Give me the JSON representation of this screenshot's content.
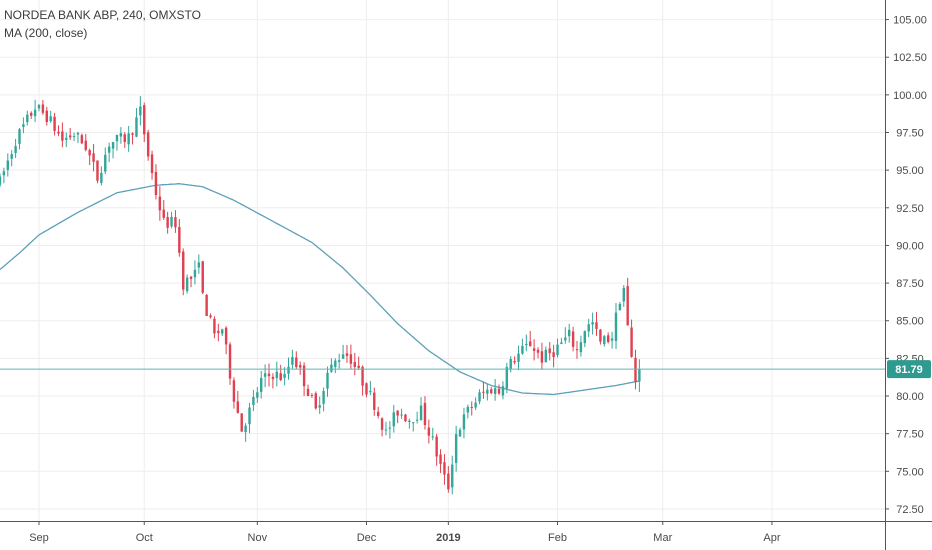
{
  "header": {
    "symbol_line": "NORDEA BANK ABP, 240, OMXSTO",
    "indicator_line": "MA (200, close)"
  },
  "price_label": "81.79",
  "colors": {
    "up": "#33a69a",
    "down": "#e0404f",
    "ma": "#5ea0b8",
    "price_line": "#5bb8b0",
    "price_badge": "#2f9a8f",
    "grid": "#eeeeee",
    "axis": "#555555"
  },
  "chart_data": {
    "type": "candlestick",
    "y_ticks": [
      "105.00",
      "102.50",
      "100.00",
      "97.50",
      "95.00",
      "92.50",
      "90.00",
      "87.50",
      "85.00",
      "82.50",
      "80.00",
      "77.50",
      "75.00",
      "72.50"
    ],
    "ylim": [
      71.7,
      106.3
    ],
    "xlim": [
      0,
      227
    ],
    "x_ticks": [
      {
        "label": "Sep",
        "x": 10,
        "bold": false
      },
      {
        "label": "Oct",
        "x": 37,
        "bold": false
      },
      {
        "label": "Nov",
        "x": 66,
        "bold": false
      },
      {
        "label": "Dec",
        "x": 94,
        "bold": false
      },
      {
        "label": "2019",
        "x": 115,
        "bold": true
      },
      {
        "label": "Feb",
        "x": 143,
        "bold": false
      },
      {
        "label": "Mar",
        "x": 170,
        "bold": false
      },
      {
        "label": "Apr",
        "x": 198,
        "bold": false
      }
    ],
    "last_price": 81.79,
    "price_anchors": [
      [
        0,
        94.2
      ],
      [
        4,
        97.0
      ],
      [
        9,
        99.2
      ],
      [
        12,
        98.6
      ],
      [
        16,
        97.0
      ],
      [
        19,
        97.4
      ],
      [
        22,
        96.6
      ],
      [
        25,
        94.5
      ],
      [
        28,
        96.8
      ],
      [
        33,
        97.2
      ],
      [
        36,
        98.9
      ],
      [
        38,
        96.0
      ],
      [
        40,
        93.5
      ],
      [
        42,
        91.5
      ],
      [
        45,
        91.5
      ],
      [
        46,
        89.5
      ],
      [
        47,
        87.5
      ],
      [
        50,
        88.0
      ],
      [
        51,
        89.3
      ],
      [
        52,
        86.5
      ],
      [
        55,
        84.0
      ],
      [
        57,
        84.5
      ],
      [
        60,
        80.0
      ],
      [
        62,
        77.8
      ],
      [
        64,
        79.0
      ],
      [
        67,
        81.0
      ],
      [
        70,
        81.5
      ],
      [
        73,
        81.2
      ],
      [
        75,
        82.8
      ],
      [
        78,
        81.0
      ],
      [
        81,
        79.0
      ],
      [
        84,
        81.5
      ],
      [
        88,
        83.0
      ],
      [
        90,
        82.5
      ],
      [
        93,
        81.0
      ],
      [
        96,
        79.5
      ],
      [
        99,
        77.5
      ],
      [
        102,
        79.0
      ],
      [
        105,
        78.5
      ],
      [
        108,
        79.0
      ],
      [
        111,
        77.0
      ],
      [
        114,
        74.5
      ],
      [
        115,
        74.0
      ],
      [
        117,
        77.5
      ],
      [
        120,
        79.0
      ],
      [
        123,
        80.0
      ],
      [
        126,
        80.5
      ],
      [
        128,
        80.3
      ],
      [
        130,
        81.8
      ],
      [
        132,
        82.5
      ],
      [
        136,
        83.5
      ],
      [
        139,
        82.5
      ],
      [
        142,
        83.0
      ],
      [
        146,
        84.0
      ],
      [
        148,
        83.0
      ],
      [
        150,
        84.5
      ],
      [
        152,
        84.8
      ],
      [
        154,
        83.5
      ],
      [
        157,
        84.0
      ],
      [
        159,
        86.5
      ],
      [
        160,
        87.2
      ],
      [
        161,
        84.5
      ],
      [
        162,
        82.5
      ],
      [
        163,
        81.0
      ],
      [
        164,
        81.79
      ]
    ],
    "ma_anchors": [
      [
        0,
        88.4
      ],
      [
        5,
        89.5
      ],
      [
        10,
        90.7
      ],
      [
        20,
        92.2
      ],
      [
        30,
        93.5
      ],
      [
        40,
        94.0
      ],
      [
        46,
        94.1
      ],
      [
        52,
        93.9
      ],
      [
        60,
        93.0
      ],
      [
        70,
        91.6
      ],
      [
        80,
        90.2
      ],
      [
        88,
        88.5
      ],
      [
        95,
        86.7
      ],
      [
        102,
        84.8
      ],
      [
        110,
        83.0
      ],
      [
        118,
        81.6
      ],
      [
        126,
        80.7
      ],
      [
        134,
        80.2
      ],
      [
        142,
        80.1
      ],
      [
        150,
        80.4
      ],
      [
        158,
        80.7
      ],
      [
        164,
        81.0
      ]
    ]
  }
}
